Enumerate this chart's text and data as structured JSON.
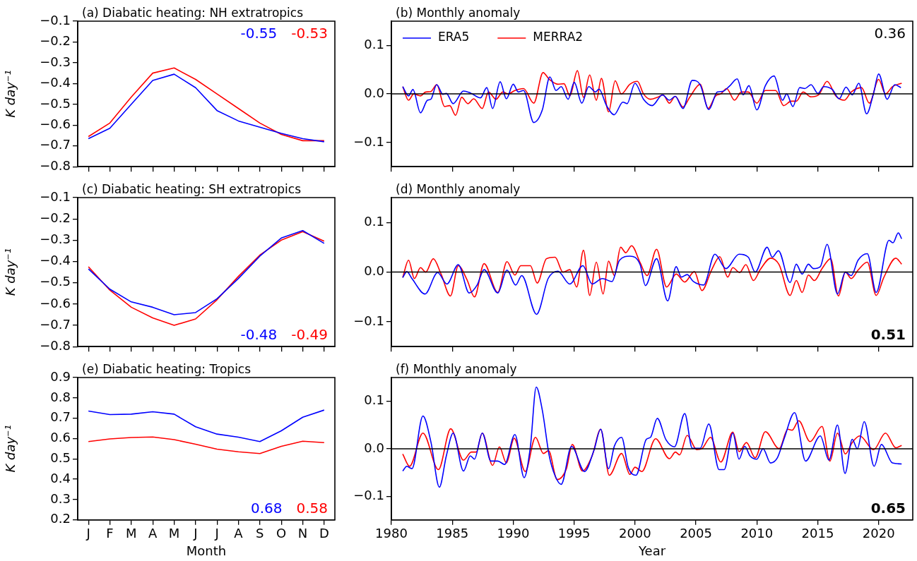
{
  "chart_data": [
    {
      "type": "line",
      "title": "(a) Diabatic heating: NH extratropics",
      "ylabel": "K day⁻¹",
      "categories": [
        null,
        null,
        null,
        null,
        null,
        null,
        null,
        null,
        null,
        null,
        null,
        null
      ],
      "series": [
        {
          "color": "#0000ff",
          "values": [
            -0.665,
            -0.615,
            -0.5,
            -0.385,
            -0.355,
            -0.42,
            -0.53,
            -0.58,
            -0.61,
            -0.64,
            -0.665,
            -0.68
          ]
        },
        {
          "color": "#ff0000",
          "values": [
            -0.655,
            -0.59,
            -0.465,
            -0.35,
            -0.325,
            -0.38,
            -0.45,
            -0.52,
            -0.59,
            -0.645,
            -0.675,
            -0.675
          ]
        }
      ],
      "ylim": [
        -0.8,
        -0.1
      ],
      "yticks": [
        -0.8,
        -0.7,
        -0.6,
        -0.5,
        -0.4,
        -0.3,
        -0.2,
        -0.1
      ],
      "tick_labels": "y",
      "annotations": [
        "-0.55",
        "-0.53"
      ]
    },
    {
      "type": "line",
      "title": "(b) Monthly anomaly",
      "legend": "top left",
      "xlim": [
        1980,
        2022.8
      ],
      "xticks": [
        1980,
        1985,
        1990,
        1995,
        2000,
        2005,
        2010,
        2015,
        2020
      ],
      "ylim": [
        -0.15,
        0.15
      ],
      "yticks": [
        {
          "value": -0.1,
          "label": "−0.1"
        },
        {
          "value": 0,
          "label": "0.0"
        },
        {
          "value": 0.1,
          "label": "0.1"
        }
      ],
      "tick_labels": "y",
      "ref_lines": [
        {
          "axis": "y",
          "value": 0
        }
      ],
      "annotations": [
        "0.36"
      ],
      "series": [
        {
          "name": "ERA5",
          "color": "#0000ff",
          "x": [
            1980.93,
            1981.41,
            1981.77,
            1982.39,
            1982.96,
            1983.24,
            1983.72,
            1984.23,
            1984.51,
            1985.07,
            1985.92,
            1986.48,
            1987.32,
            1987.83,
            1988.31,
            1988.93,
            1989.44,
            1990.0,
            1990.42,
            1990.85,
            1991.69,
            1992.39,
            1993.01,
            1993.52,
            1993.94,
            1994.51,
            1995.01,
            1995.63,
            1996.2,
            1996.76,
            1997.04,
            1997.66,
            1998.28,
            1999.01,
            1999.35,
            2000.0,
            2000.7,
            2001.41,
            2002.25,
            2002.82,
            2003.3,
            2003.94,
            2004.7,
            2005.35,
            2006.06,
            2006.76,
            2007.18,
            2007.75,
            2008.39,
            2008.87,
            2009.35,
            2010.0,
            2010.7,
            2011.41,
            2012.11,
            2012.45,
            2012.96,
            2013.52,
            2013.94,
            2014.45,
            2015.01,
            2015.49,
            2016.2,
            2016.76,
            2017.32,
            2017.83,
            2018.37,
            2019.01,
            2019.58,
            2020.0,
            2020.7,
            2021.32,
            2021.83
          ],
          "values": [
            0.015,
            -0.004,
            0.009,
            -0.039,
            -0.013,
            -0.011,
            0.019,
            -0.001,
            0.001,
            -0.02,
            0.006,
            0.002,
            -0.008,
            0.013,
            -0.03,
            0.025,
            -0.01,
            0.02,
            0.004,
            0.007,
            -0.059,
            -0.033,
            0.035,
            0.007,
            0.015,
            -0.011,
            0.024,
            -0.019,
            0.015,
            0.004,
            0.01,
            -0.024,
            -0.043,
            -0.017,
            -0.02,
            0.022,
            -0.011,
            -0.024,
            -0.002,
            -0.013,
            -0.005,
            -0.03,
            0.028,
            0.019,
            -0.032,
            0.004,
            0.005,
            0.016,
            0.031,
            -0.002,
            0.017,
            -0.033,
            0.017,
            0.037,
            -0.013,
            0,
            -0.026,
            0.013,
            0.011,
            0.019,
            0.001,
            0.015,
            0.009,
            -0.01,
            0.014,
            -0.002,
            0.022,
            -0.041,
            0.001,
            0.041,
            -0.011,
            0.019,
            0.013
          ]
        },
        {
          "name": "MERRA2",
          "color": "#ff0000",
          "x": [
            1980.93,
            1981.41,
            1981.83,
            1982.39,
            1982.82,
            1983.24,
            1983.72,
            1984.37,
            1984.79,
            1985.27,
            1985.77,
            1986.28,
            1986.76,
            1987.46,
            1987.97,
            1988.59,
            1989.15,
            1989.58,
            1990.14,
            1990.85,
            1991.69,
            1992.45,
            1992.96,
            1993.66,
            1994.17,
            1994.65,
            1995.27,
            1995.77,
            1996.28,
            1996.82,
            1997.24,
            1997.83,
            1998.37,
            1998.87,
            1999.58,
            2000.2,
            2000.7,
            2001.27,
            2001.83,
            2002.31,
            2002.82,
            2003.3,
            2003.94,
            2004.51,
            2005.35,
            2006.0,
            2006.62,
            2007.04,
            2007.52,
            2008.17,
            2008.73,
            2009.3,
            2010.0,
            2010.7,
            2011.55,
            2012.2,
            2012.82,
            2013.24,
            2013.8,
            2014.45,
            2015.07,
            2015.77,
            2016.48,
            2017.18,
            2017.75,
            2018.59,
            2019.24,
            2020.0,
            2020.56,
            2021.13,
            2021.89
          ],
          "values": [
            0.015,
            -0.013,
            0,
            -0.004,
            0.004,
            0.005,
            0.019,
            -0.026,
            -0.024,
            -0.044,
            -0.007,
            -0.02,
            -0.01,
            -0.03,
            0.004,
            -0.011,
            0.004,
            0,
            0.007,
            0.011,
            -0.019,
            0.044,
            0.03,
            0.02,
            0.021,
            -0.004,
            0.048,
            -0.007,
            0.039,
            -0.013,
            0.032,
            -0.037,
            0.027,
            0,
            0.02,
            0.026,
            0,
            -0.011,
            -0.007,
            -0.002,
            -0.019,
            -0.005,
            -0.027,
            -0.006,
            0.02,
            -0.03,
            -0.004,
            0,
            0.011,
            -0.013,
            0.004,
            0.004,
            -0.019,
            0.007,
            0.007,
            -0.024,
            -0.015,
            -0.015,
            0.004,
            -0.006,
            -0.002,
            0.026,
            -0.004,
            -0.013,
            0.004,
            0.013,
            -0.019,
            0.03,
            0,
            0.015,
            0.022
          ]
        }
      ]
    },
    {
      "type": "line",
      "title": "(c) Diabatic heating: SH extratropics",
      "ylabel": "K day⁻¹",
      "categories": [
        null,
        null,
        null,
        null,
        null,
        null,
        null,
        null,
        null,
        null,
        null,
        null
      ],
      "series": [
        {
          "color": "#0000ff",
          "values": [
            -0.435,
            -0.53,
            -0.59,
            -0.615,
            -0.65,
            -0.64,
            -0.575,
            -0.48,
            -0.375,
            -0.29,
            -0.255,
            -0.315
          ]
        },
        {
          "color": "#ff0000",
          "values": [
            -0.425,
            -0.535,
            -0.615,
            -0.665,
            -0.7,
            -0.67,
            -0.58,
            -0.47,
            -0.37,
            -0.3,
            -0.26,
            -0.305
          ]
        }
      ],
      "ylim": [
        -0.8,
        -0.1
      ],
      "yticks": [
        -0.8,
        -0.7,
        -0.6,
        -0.5,
        -0.4,
        -0.3,
        -0.2,
        -0.1
      ],
      "tick_labels": "y",
      "annotations": [
        "-0.48",
        "-0.49"
      ]
    },
    {
      "type": "line",
      "title": "(d) Monthly anomaly",
      "xlim": [
        1980,
        2022.8
      ],
      "xticks": [
        1980,
        1985,
        1990,
        1995,
        2000,
        2005,
        2010,
        2015,
        2020
      ],
      "ylim": [
        -0.15,
        0.15
      ],
      "yticks": [
        {
          "value": -0.1,
          "label": "−0.1"
        },
        {
          "value": 0,
          "label": "0.0"
        },
        {
          "value": 0.1,
          "label": "0.1"
        }
      ],
      "tick_labels": "y",
      "ref_lines": [
        {
          "axis": "y",
          "value": 0
        }
      ],
      "annotations": [
        "0.51"
      ],
      "series": [
        {
          "color": "#0000ff",
          "x": [
            1980.93,
            1981.27,
            1981.69,
            1982.76,
            1983.8,
            1984.56,
            1985.49,
            1986.39,
            1987.04,
            1987.61,
            1988.73,
            1989.49,
            1990.2,
            1990.7,
            1991.92,
            1992.87,
            1993.66,
            1994.65,
            1995.72,
            1996.48,
            1997.32,
            1998.11,
            1998.73,
            1999.58,
            2000.42,
            2000.85,
            2001.77,
            2002.68,
            2003.38,
            2003.8,
            2004.28,
            2004.79,
            2005.63,
            2006.56,
            2007.46,
            2008.54,
            2009.3,
            2009.86,
            2010.85,
            2011.27,
            2011.77,
            2012.73,
            2013.24,
            2013.72,
            2014.23,
            2014.65,
            2015.21,
            2015.77,
            2016.62,
            2017.27,
            2017.75,
            2018.31,
            2019.07,
            2019.8,
            2020.85,
            2021.18,
            2021.61,
            2021.89
          ],
          "values": [
            -0.011,
            0.001,
            -0.013,
            -0.044,
            -0.001,
            -0.024,
            0.015,
            -0.042,
            -0.026,
            0.005,
            -0.042,
            0.004,
            -0.026,
            -0.007,
            -0.085,
            -0.013,
            0.002,
            -0.024,
            0.013,
            -0.024,
            -0.013,
            -0.019,
            0.024,
            0.032,
            0.015,
            -0.027,
            0.027,
            -0.058,
            0.011,
            -0.01,
            -0.005,
            -0.019,
            -0.026,
            0.036,
            0.007,
            0.036,
            0.03,
            0,
            0.05,
            0.03,
            0.043,
            -0.021,
            0.016,
            -0.004,
            0.016,
            0.007,
            0.011,
            0.056,
            -0.044,
            0,
            -0.007,
            0.024,
            0.037,
            -0.041,
            0.064,
            0.059,
            0.079,
            0.067
          ]
        },
        {
          "color": "#ff0000",
          "x": [
            1980.93,
            1981.41,
            1981.89,
            1982.39,
            1982.82,
            1983.44,
            1984.08,
            1984.85,
            1985.49,
            1986.2,
            1986.82,
            1987.61,
            1988.73,
            1989.49,
            1990.14,
            1990.62,
            1991.41,
            1991.97,
            1992.73,
            1993.44,
            1994.08,
            1994.65,
            1995.21,
            1995.77,
            1996.28,
            1996.82,
            1997.38,
            1997.83,
            1998.31,
            1998.82,
            1999.24,
            1999.72,
            2000.42,
            2000.99,
            2001.77,
            2002.59,
            2003.38,
            2004.08,
            2004.87,
            2005.49,
            2006.28,
            2006.96,
            2007.61,
            2008.03,
            2008.59,
            2009.1,
            2009.72,
            2010.28,
            2011.13,
            2011.83,
            2012.73,
            2013.24,
            2013.72,
            2014.23,
            2014.73,
            2015.35,
            2016.06,
            2016.7,
            2017.27,
            2017.75,
            2018.31,
            2019.07,
            2019.8,
            2020.42,
            2021.41,
            2021.89
          ],
          "values": [
            -0.011,
            0.024,
            -0.013,
            0.009,
            0,
            0.027,
            -0.004,
            -0.048,
            0.013,
            -0.015,
            -0.05,
            0.017,
            -0.041,
            0.021,
            -0.006,
            0.013,
            0.013,
            -0.022,
            0.027,
            0.03,
            0,
            0.005,
            -0.03,
            0.044,
            -0.047,
            0.02,
            -0.044,
            0.022,
            -0.007,
            0.05,
            0.039,
            0.053,
            0.019,
            -0.007,
            0.046,
            -0.03,
            -0.004,
            -0.02,
            0.001,
            -0.037,
            0.004,
            0.031,
            -0.01,
            0.009,
            -0.001,
            0.015,
            -0.017,
            0.005,
            0.028,
            0.015,
            -0.047,
            -0.017,
            -0.041,
            -0.006,
            -0.017,
            0.007,
            0.027,
            -0.048,
            0,
            -0.013,
            0.004,
            0.02,
            -0.047,
            -0.011,
            0.028,
            0.016
          ]
        }
      ]
    },
    {
      "type": "line",
      "title": "(e) Diabatic heating: Tropics",
      "ylabel": "K day⁻¹",
      "xlabel": "Month",
      "categories": [
        "J",
        "F",
        "M",
        "A",
        "M",
        "J",
        "J",
        "A",
        "S",
        "O",
        "N",
        "D"
      ],
      "series": [
        {
          "color": "#0000ff",
          "values": [
            0.735,
            0.718,
            0.72,
            0.732,
            0.72,
            0.658,
            0.622,
            0.607,
            0.585,
            0.638,
            0.705,
            0.74
          ]
        },
        {
          "color": "#ff0000",
          "values": [
            0.585,
            0.598,
            0.605,
            0.608,
            0.595,
            0.572,
            0.548,
            0.535,
            0.526,
            0.562,
            0.587,
            0.58
          ]
        }
      ],
      "ylim": [
        0.2,
        0.9
      ],
      "yticks": [
        0.2,
        0.3,
        0.4,
        0.5,
        0.6,
        0.7,
        0.8,
        0.9
      ],
      "annotations": [
        "0.68",
        "0.58"
      ]
    },
    {
      "type": "line",
      "title": "(f) Monthly anomaly",
      "xlabel": "Year",
      "xlim": [
        1980,
        2022.8
      ],
      "xticks": [
        1980,
        1985,
        1990,
        1995,
        2000,
        2005,
        2010,
        2015,
        2020
      ],
      "ylim": [
        -0.15,
        0.15
      ],
      "yticks": [
        {
          "value": -0.1,
          "label": "−0.1"
        },
        {
          "value": 0,
          "label": "0.0"
        },
        {
          "value": 0.1,
          "label": "0.1"
        }
      ],
      "ref_lines": [
        {
          "axis": "y",
          "value": 0
        }
      ],
      "annotations": [
        "0.65"
      ],
      "series": [
        {
          "color": "#0000ff",
          "x": [
            1980.93,
            1981.27,
            1981.69,
            1982.59,
            1983.24,
            1983.94,
            1984.51,
            1985.07,
            1985.92,
            1986.48,
            1986.82,
            1987.46,
            1988.17,
            1988.73,
            1989.3,
            1990.14,
            1990.9,
            1991.41,
            1991.89,
            1992.39,
            1992.96,
            1993.44,
            1993.94,
            1994.79,
            1995.86,
            1996.62,
            1997.18,
            1997.83,
            1998.31,
            1998.9,
            1999.44,
            2000.08,
            2000.93,
            2001.27,
            2001.83,
            2002.54,
            2003.24,
            2004.08,
            2004.7,
            2005.35,
            2006.06,
            2006.9,
            2007.32,
            2008.03,
            2008.54,
            2009.01,
            2009.44,
            2010.0,
            2010.51,
            2011.13,
            2011.69,
            2012.25,
            2013.1,
            2014.0,
            2015.21,
            2015.92,
            2016.62,
            2017.24,
            2017.83,
            2018.25,
            2018.82,
            2019.63,
            2020.23,
            2021.13,
            2021.89
          ],
          "values": [
            -0.047,
            -0.037,
            -0.042,
            0.069,
            0.015,
            -0.081,
            -0.015,
            0.033,
            -0.047,
            -0.015,
            -0.022,
            0.033,
            -0.026,
            -0.026,
            -0.033,
            0.03,
            -0.061,
            0.004,
            0.13,
            0.081,
            -0.015,
            -0.057,
            -0.075,
            0.005,
            -0.048,
            -0.004,
            0.041,
            -0.042,
            0.006,
            0.024,
            -0.039,
            -0.056,
            0.02,
            0.024,
            0.064,
            0.019,
            0.004,
            0.074,
            0.001,
            0.001,
            0.052,
            -0.044,
            -0.044,
            0.033,
            -0.022,
            0.005,
            -0.015,
            -0.022,
            0,
            -0.03,
            -0.019,
            0.022,
            0.076,
            -0.026,
            0.027,
            -0.024,
            0.05,
            -0.052,
            0.02,
            0,
            0.057,
            -0.037,
            0.009,
            -0.03,
            -0.032
          ]
        },
        {
          "color": "#ff0000",
          "x": [
            1980.93,
            1981.49,
            1982.59,
            1983.86,
            1984.87,
            1985.92,
            1986.56,
            1986.96,
            1987.46,
            1988.31,
            1988.87,
            1989.44,
            1990.08,
            1990.99,
            1991.83,
            1992.48,
            1992.9,
            1993.61,
            1994.37,
            1994.85,
            1995.69,
            1996.48,
            1997.18,
            1997.89,
            1998.9,
            1999.58,
            2000.0,
            2000.56,
            2001.69,
            2002.82,
            2003.32,
            2003.66,
            2004.28,
            2005.07,
            2005.49,
            2006.2,
            2007.04,
            2008.03,
            2008.54,
            2009.15,
            2009.86,
            2010.7,
            2011.83,
            2012.54,
            2012.9,
            2013.44,
            2014.37,
            2015.35,
            2016.0,
            2016.62,
            2017.27,
            2017.83,
            2018.45,
            2019.58,
            2020.56,
            2021.41,
            2021.89
          ],
          "values": [
            -0.011,
            -0.037,
            0.033,
            -0.044,
            0.042,
            -0.024,
            -0.007,
            -0.007,
            0.033,
            -0.035,
            0.004,
            -0.03,
            0.022,
            -0.048,
            0.024,
            -0.01,
            -0.004,
            -0.065,
            -0.042,
            0.009,
            -0.047,
            -0.015,
            0.041,
            -0.056,
            -0.01,
            -0.054,
            -0.039,
            -0.048,
            0.021,
            -0.021,
            -0.007,
            -0.013,
            0.028,
            -0.002,
            0,
            0.024,
            -0.028,
            0.035,
            -0.006,
            0.013,
            -0.019,
            0.036,
            0,
            0.041,
            0.039,
            0.059,
            0.015,
            0.047,
            -0.026,
            0.033,
            -0.011,
            0.013,
            0.027,
            -0.002,
            0.033,
            0.002,
            0.007
          ]
        }
      ]
    }
  ]
}
